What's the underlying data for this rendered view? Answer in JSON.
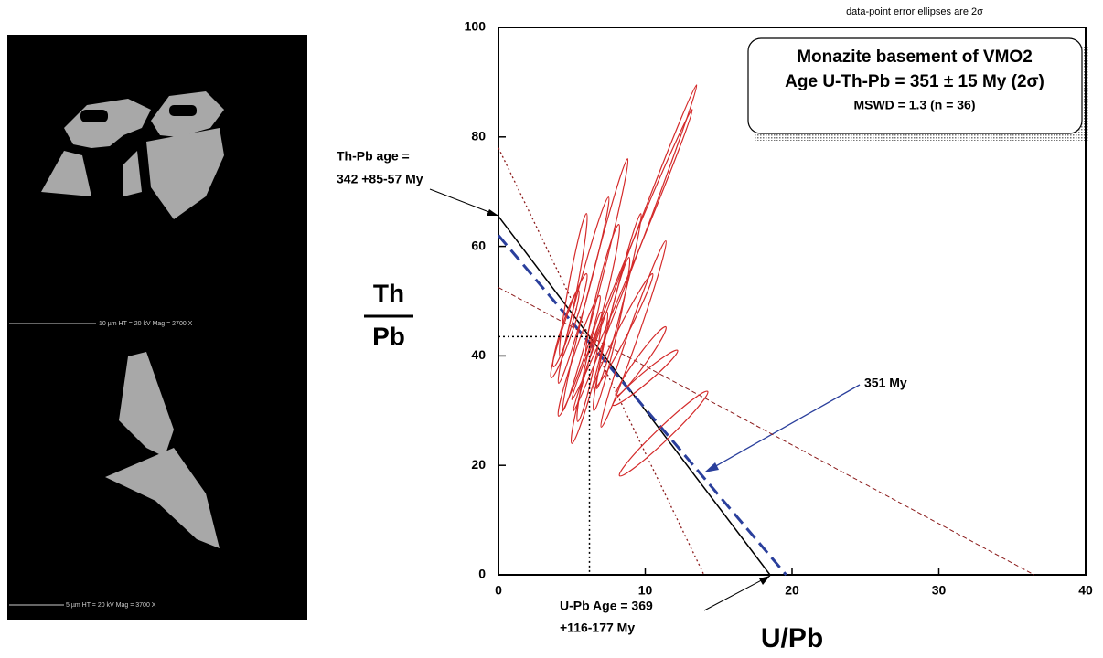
{
  "chart_data": {
    "type": "ellipse",
    "note_top": "data-point error ellipses are 2σ",
    "box": [
      "Monazite basement of VMO2",
      "Age U-Th-Pb = 351 ± 15 My (2σ)",
      "MSWD = 1.3 (n = 36)"
    ],
    "x_label": "U/Pb",
    "y_label": [
      "Th",
      "Pb"
    ],
    "annotations": {
      "thpb": [
        "Th-Pb age  =",
        "342 +85-57 My"
      ],
      "upb": [
        "U-Pb Age = 369",
        "+116-177 My"
      ],
      "mean": "351 My"
    },
    "image_captions": [
      "10 µm   HT = 20 kV   Mag = 2700 X",
      "5 µm   HT = 20 kV   Mag = 3700 X"
    ],
    "xlim": [
      0,
      40
    ],
    "xticks": [
      0,
      10,
      20,
      30,
      40
    ],
    "ylim": [
      0,
      100
    ],
    "yticks": [
      0,
      20,
      40,
      60,
      80,
      100
    ],
    "ellipse_color": "#d42a2a",
    "ellipses": [
      {
        "x": 9.3,
        "y": 59.7,
        "dx": 4.2,
        "dy": 29.8,
        "w": 0.3
      },
      {
        "x": 9.1,
        "y": 58.5,
        "dx": 4.1,
        "dy": 26.5,
        "w": 0.3
      },
      {
        "x": 6.6,
        "y": 53,
        "dx": 2.2,
        "dy": 23,
        "w": 0.35
      },
      {
        "x": 5.8,
        "y": 52,
        "dx": 1.7,
        "dy": 17,
        "w": 0.35
      },
      {
        "x": 9.2,
        "y": 44,
        "dx": 2.2,
        "dy": 17,
        "w": 0.35
      },
      {
        "x": 8.5,
        "y": 44.5,
        "dx": 2,
        "dy": 10.5,
        "w": 0.35
      },
      {
        "x": 9.7,
        "y": 39,
        "dx": 1.7,
        "dy": 6.3,
        "w": 0.35
      },
      {
        "x": 11.25,
        "y": 25.8,
        "dx": 3,
        "dy": 7.7,
        "w": 0.45
      },
      {
        "x": 10,
        "y": 36,
        "dx": 2.2,
        "dy": 5,
        "w": 0.35
      },
      {
        "x": 4.8,
        "y": 45.5,
        "dx": 1.2,
        "dy": 9.5,
        "w": 0.35
      },
      {
        "x": 6.2,
        "y": 36,
        "dx": 1.2,
        "dy": 12,
        "w": 0.35
      },
      {
        "x": 5.1,
        "y": 53,
        "dx": 0.9,
        "dy": 13,
        "w": 0.3
      },
      {
        "x": 7.1,
        "y": 52,
        "dx": 1.1,
        "dy": 12,
        "w": 0.35
      },
      {
        "x": 4.6,
        "y": 45,
        "dx": 0.85,
        "dy": 7,
        "w": 0.3
      },
      {
        "x": 7.7,
        "y": 44,
        "dx": 1.2,
        "dy": 14,
        "w": 0.35
      },
      {
        "x": 6.2,
        "y": 38,
        "dx": 0.8,
        "dy": 10,
        "w": 0.3
      },
      {
        "x": 5.5,
        "y": 40,
        "dx": 1.4,
        "dy": 11,
        "w": 0.35
      },
      {
        "x": 8.2,
        "y": 50,
        "dx": 1.5,
        "dy": 16,
        "w": 0.3
      }
    ],
    "lines": [
      {
        "x": [
          0,
          18.5
        ],
        "y": [
          65.5,
          0
        ],
        "color": "#000000",
        "style": "solid"
      },
      {
        "x": [
          0,
          19.6
        ],
        "y": [
          62,
          0
        ],
        "color": "#2a3f9c",
        "style": "dashed"
      },
      {
        "x": [
          0,
          14
        ],
        "y": [
          78,
          0
        ],
        "color": "#8b1a1a",
        "style": "dotted"
      },
      {
        "x": [
          0,
          36.5
        ],
        "y": [
          52.5,
          0
        ],
        "color": "#8b1a1a",
        "style": "dashed-thin"
      }
    ],
    "crosshair": {
      "x": 6.2,
      "y": 43.5
    }
  }
}
